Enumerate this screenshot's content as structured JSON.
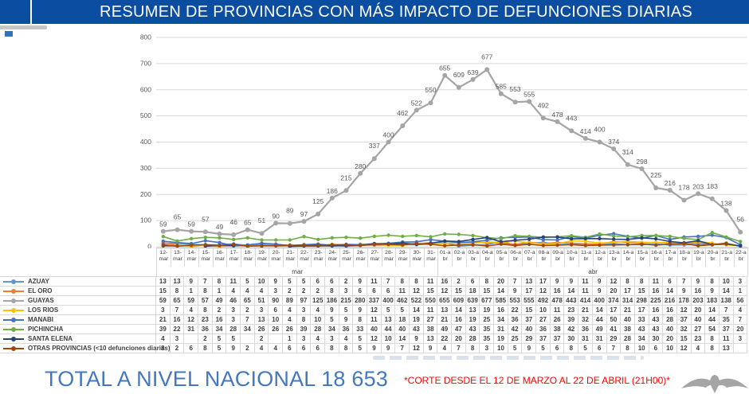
{
  "banner": {
    "title": "RESUMEN DE PROVINCIAS CON MÁS IMPACTO DE DEFUNCIONES DIARIAS"
  },
  "footer": {
    "total_label": "TOTAL A NIVEL NACIONAL 18 653",
    "note": "*CORTE DESDE EL 12 DE MARZO AL 22 DE ABRIL (21H00)*"
  },
  "icons": {
    "eagle_emblem": "eagle-silhouette-watermark"
  },
  "colors": {
    "banner_bg": "#0a4da1",
    "total_text": "#4478be",
    "note_text": "#ff0000",
    "grid": "#d9d9d9",
    "border": "#d9d9d9",
    "axis_text": "#595959",
    "table_text": "#404040"
  },
  "chart_data": {
    "type": "line",
    "title": "",
    "xlabel": "",
    "ylabel": "",
    "ylim": [
      0,
      800
    ],
    "ytick_step": 100,
    "yticks": [
      0,
      100,
      200,
      300,
      400,
      500,
      600,
      700,
      800
    ],
    "grid": true,
    "legend_position": "table-left",
    "data_labels_series": "GUAYAS",
    "x": [
      "12-mar",
      "13-mar",
      "14-mar",
      "15-mar",
      "16-mar",
      "17-mar",
      "18-mar",
      "19-mar",
      "20-mar",
      "21-mar",
      "22-mar",
      "23-mar",
      "24-mar",
      "25-mar",
      "26-mar",
      "27-mar",
      "28-mar",
      "29-mar",
      "30-mar",
      "31-mar",
      "01-abr",
      "02-abr",
      "03-abr",
      "04-abr",
      "05-abr",
      "06-abr",
      "07-abr",
      "08-abr",
      "09-abr",
      "10-abr",
      "11-abr",
      "12-abr",
      "13-abr",
      "14-abr",
      "15-abr",
      "16-abr",
      "17-abr",
      "18-abr",
      "19-abr",
      "20-abr",
      "21-abr",
      "22-abr"
    ],
    "x_groups": [
      {
        "label": "mar",
        "span": 20
      },
      {
        "label": "abr",
        "span": 22
      }
    ],
    "series": [
      {
        "name": "AZUAY",
        "color": "#5B9BD5",
        "values": [
          13,
          13,
          9,
          7,
          8,
          11,
          5,
          10,
          9,
          5,
          5,
          6,
          6,
          2,
          9,
          11,
          7,
          8,
          8,
          11,
          16,
          2,
          6,
          8,
          20,
          7,
          13,
          17,
          9,
          9,
          11,
          9,
          12,
          8,
          8,
          11,
          6,
          7,
          9,
          8,
          10,
          3
        ]
      },
      {
        "name": "EL ORO",
        "color": "#ED7D31",
        "values": [
          15,
          8,
          1,
          8,
          1,
          4,
          4,
          4,
          3,
          2,
          2,
          2,
          8,
          3,
          6,
          6,
          6,
          11,
          12,
          15,
          12,
          15,
          18,
          15,
          14,
          9,
          17,
          12,
          16,
          14,
          11,
          9,
          20,
          17,
          15,
          16,
          14,
          9,
          16,
          9,
          14,
          1
        ]
      },
      {
        "name": "GUAYAS",
        "color": "#A5A5A5",
        "values": [
          59,
          65,
          59,
          57,
          49,
          46,
          65,
          51,
          90,
          89,
          97,
          125,
          186,
          215,
          280,
          337,
          400,
          462,
          522,
          550,
          655,
          609,
          639,
          677,
          585,
          553,
          555,
          492,
          478,
          443,
          414,
          400,
          374,
          314,
          298,
          225,
          216,
          178,
          203,
          183,
          138,
          56
        ]
      },
      {
        "name": "LOS RIOS",
        "color": "#FFC000",
        "values": [
          3,
          7,
          4,
          8,
          2,
          3,
          2,
          3,
          6,
          4,
          3,
          4,
          9,
          5,
          9,
          12,
          5,
          5,
          14,
          11,
          13,
          14,
          13,
          19,
          16,
          22,
          15,
          10,
          11,
          23,
          21,
          14,
          17,
          21,
          17,
          16,
          16,
          12,
          20,
          14,
          7,
          4
        ]
      },
      {
        "name": "MANABI",
        "color": "#4472C4",
        "values": [
          21,
          16,
          12,
          23,
          16,
          3,
          7,
          13,
          10,
          4,
          8,
          10,
          5,
          9,
          8,
          11,
          13,
          18,
          19,
          27,
          21,
          16,
          19,
          25,
          34,
          36,
          37,
          27,
          26,
          39,
          32,
          44,
          50,
          40,
          33,
          43,
          28,
          37,
          40,
          44,
          35,
          7
        ]
      },
      {
        "name": "PICHINCHA",
        "color": "#70AD47",
        "values": [
          39,
          22,
          31,
          36,
          34,
          28,
          34,
          26,
          26,
          26,
          39,
          28,
          34,
          36,
          33,
          40,
          44,
          40,
          43,
          38,
          49,
          47,
          43,
          35,
          31,
          42,
          40,
          36,
          38,
          42,
          36,
          49,
          41,
          38,
          43,
          43,
          40,
          32,
          27,
          54,
          37,
          20
        ]
      },
      {
        "name": "SANTA ELENA",
        "color": "#264478",
        "values": [
          4,
          3,
          null,
          2,
          5,
          5,
          null,
          2,
          null,
          1,
          3,
          4,
          3,
          4,
          5,
          12,
          10,
          14,
          9,
          13,
          22,
          20,
          28,
          35,
          19,
          25,
          29,
          37,
          37,
          30,
          31,
          31,
          29,
          28,
          34,
          30,
          20,
          15,
          23,
          8,
          11,
          3
        ]
      },
      {
        "name": "OTRAS PROVINCIAS (<10 defunciones diarias)",
        "color": "#9E480E",
        "values": [
          8,
          2,
          6,
          8,
          5,
          9,
          2,
          4,
          4,
          6,
          6,
          6,
          8,
          8,
          5,
          9,
          9,
          7,
          12,
          9,
          4,
          7,
          8,
          3,
          10,
          5,
          9,
          5,
          6,
          8,
          5,
          6,
          7,
          8,
          10,
          6,
          10,
          12,
          4,
          8,
          13,
          null
        ]
      }
    ]
  }
}
